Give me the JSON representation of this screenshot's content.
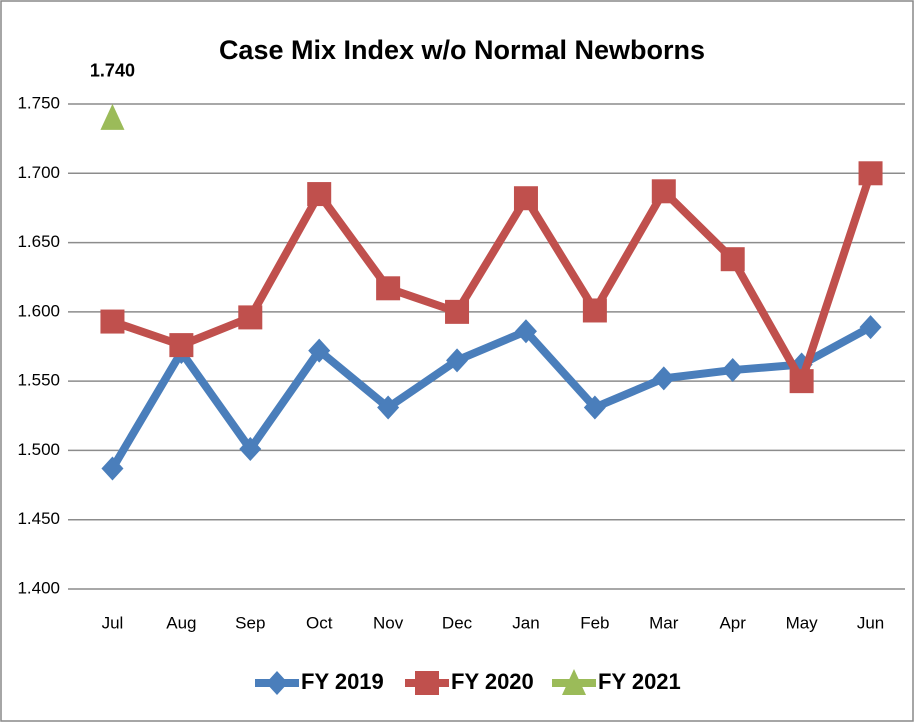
{
  "chart_data": {
    "type": "line",
    "title": "Case Mix Index w/o Normal Newborns",
    "categories": [
      "Jul",
      "Aug",
      "Sep",
      "Oct",
      "Nov",
      "Dec",
      "Jan",
      "Feb",
      "Mar",
      "Apr",
      "May",
      "Jun"
    ],
    "series": [
      {
        "name": "FY 2019",
        "color": "#4a7ebb",
        "marker": "diamond",
        "values": [
          1.487,
          1.571,
          1.501,
          1.572,
          1.531,
          1.565,
          1.586,
          1.531,
          1.552,
          1.558,
          1.562,
          1.589
        ]
      },
      {
        "name": "FY 2020",
        "color": "#c0504d",
        "marker": "square",
        "values": [
          1.593,
          1.576,
          1.596,
          1.685,
          1.617,
          1.6,
          1.682,
          1.601,
          1.687,
          1.638,
          1.55,
          1.7
        ]
      },
      {
        "name": "FY 2021",
        "color": "#9bbb59",
        "marker": "triangle",
        "values": [
          1.74,
          null,
          null,
          null,
          null,
          null,
          null,
          null,
          null,
          null,
          null,
          null
        ],
        "value_labels": [
          "1.740",
          null,
          null,
          null,
          null,
          null,
          null,
          null,
          null,
          null,
          null,
          null
        ]
      }
    ],
    "ylim": [
      1.4,
      1.75
    ],
    "yticks": [
      {
        "value": 1.4,
        "label": "1.400"
      },
      {
        "value": 1.45,
        "label": "1.450"
      },
      {
        "value": 1.5,
        "label": "1.500"
      },
      {
        "value": 1.55,
        "label": "1.550"
      },
      {
        "value": 1.6,
        "label": "1.600"
      },
      {
        "value": 1.65,
        "label": "1.650"
      },
      {
        "value": 1.7,
        "label": "1.700"
      },
      {
        "value": 1.75,
        "label": "1.750"
      }
    ],
    "grid": true,
    "legend": "bottom"
  }
}
